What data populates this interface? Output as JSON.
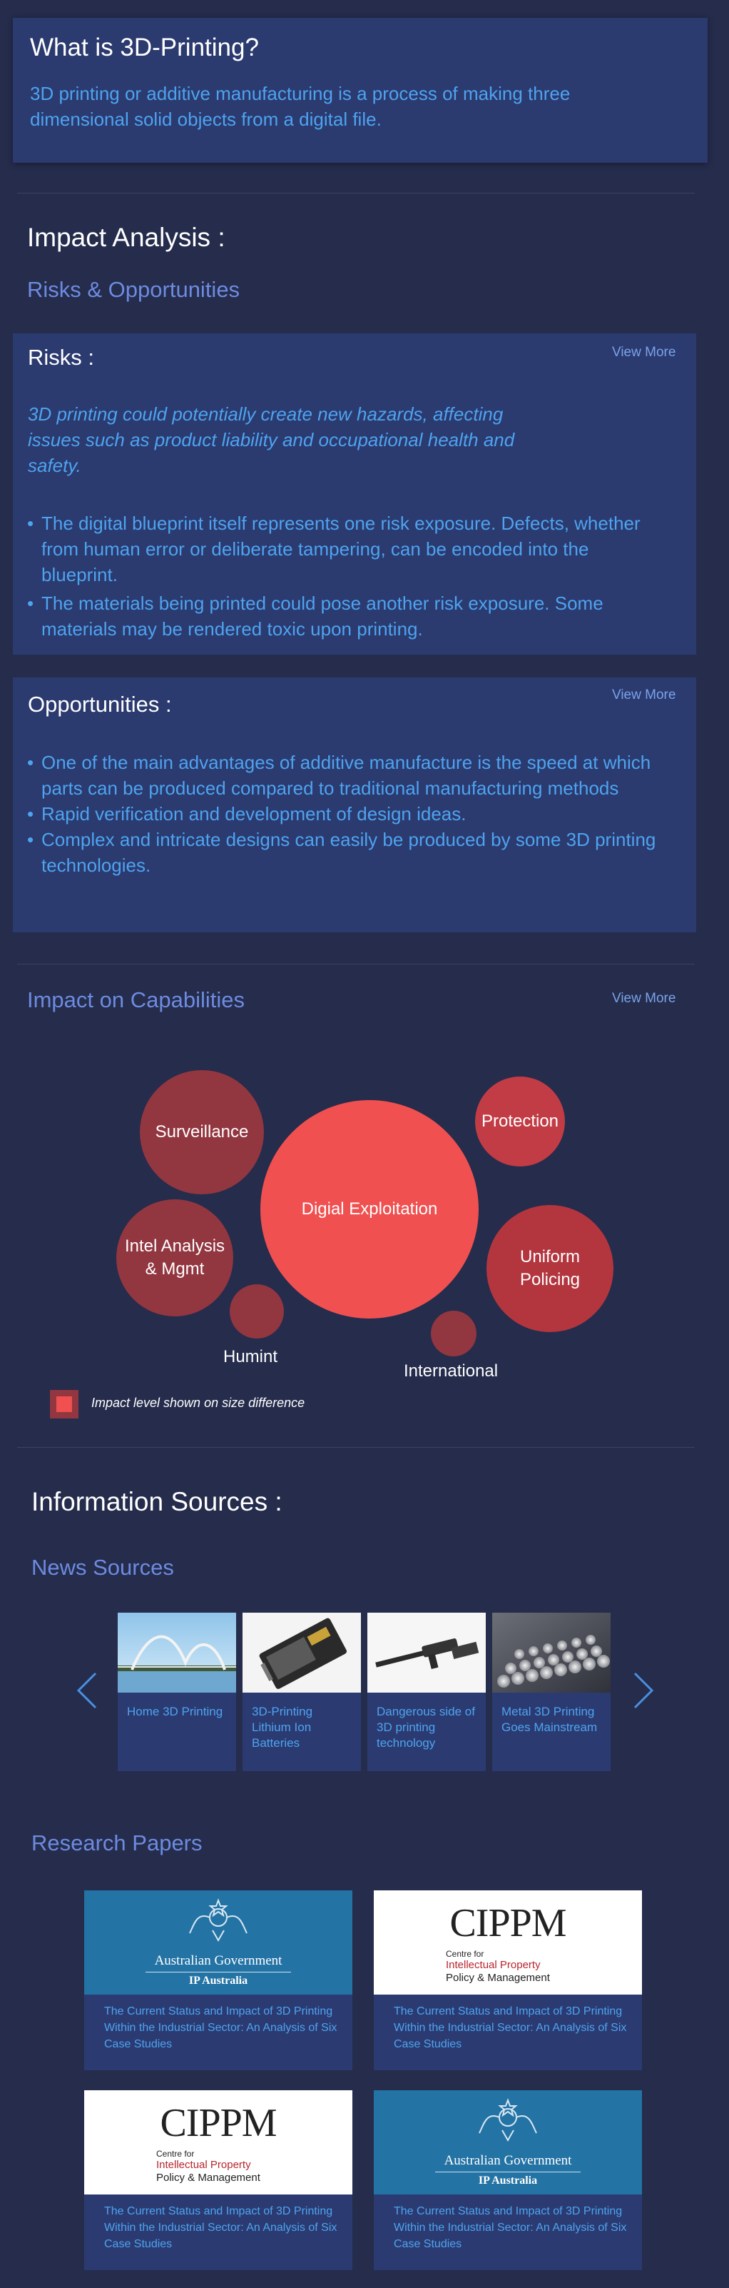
{
  "intro": {
    "heading": "What is 3D-Printing?",
    "body": "3D printing or additive manufacturing is a process of making three dimensional solid objects from a digital file."
  },
  "impact": {
    "heading": "Impact Analysis :",
    "subheading": "Risks & Opportunities"
  },
  "risks": {
    "heading": "Risks :",
    "view_more": "View More",
    "summary": "3D printing could potentially create new hazards, affecting issues such as product liability and occupational health and safety.",
    "bullets": [
      "The digital blueprint itself represents one risk exposure. Defects, whether from human error or deliberate tampering, can be encoded into the blueprint.",
      "The materials being printed could pose another risk exposure. Some materials may be rendered toxic upon printing."
    ]
  },
  "opportunities": {
    "heading": "Opportunities :",
    "view_more": "View More",
    "bullets": [
      "One of the main advantages of additive manufacture is the speed at which parts can be produced compared to traditional manufacturing methods",
      "Rapid verification and development of design ideas.",
      "Complex and intricate designs can easily be produced by some 3D printing technologies."
    ]
  },
  "capabilities": {
    "heading": "Impact on Capabilities",
    "view_more": "View More",
    "bubbles": [
      {
        "label": "Digial Exploitation",
        "size": 5
      },
      {
        "label": "Surveillance",
        "size": 3
      },
      {
        "label": "Protection",
        "size": 2
      },
      {
        "label": "Intel Analysis & Mgmt",
        "size": 3
      },
      {
        "label": "Uniform Policing",
        "size": 3
      },
      {
        "label": "Humint",
        "size": 1
      },
      {
        "label": "International",
        "size": 1
      }
    ],
    "legend": "Impact level shown on size difference",
    "colors": {
      "major": "#f05050",
      "minor": "#923640",
      "legend": "#f05050"
    }
  },
  "sources": {
    "heading": "Information Sources :",
    "news_heading": "News Sources",
    "news": [
      {
        "title": "Home 3D Printing",
        "image": "bridge-photo"
      },
      {
        "title": "3D-Printing Lithium Ion Batteries",
        "image": "battery-photo"
      },
      {
        "title": "Dangerous side of 3D printing technology",
        "image": "gun-photo"
      },
      {
        "title": "Metal 3D Printing Goes Mainstream",
        "image": "metal-rods-photo"
      }
    ],
    "papers_heading": "Research Papers",
    "papers": [
      {
        "logo": "australian-government",
        "logo_line1": "Australian Government",
        "logo_line2": "IP Australia",
        "title": "The Current Status and Impact of 3D Printing Within the Industrial Sector: An Analysis of Six Case Studies"
      },
      {
        "logo": "cippm",
        "logo_acronym": "CIPPM",
        "logo_line1": "Centre for",
        "logo_line2": "Intellectual Property",
        "logo_line3": "Policy & Management",
        "title": "The Current Status and Impact of 3D Printing Within the Industrial Sector: An Analysis of Six Case Studies"
      },
      {
        "logo": "cippm",
        "logo_acronym": "CIPPM",
        "logo_line1": "Centre for",
        "logo_line2": "Intellectual Property",
        "logo_line3": "Policy & Management",
        "title": "The Current Status and Impact of 3D Printing Within the Industrial Sector: An Analysis of Six Case Studies"
      },
      {
        "logo": "australian-government",
        "logo_line1": "Australian Government",
        "logo_line2": "IP Australia",
        "title": "The Current Status and Impact of 3D Printing Within the Industrial Sector: An Analysis of Six Case Studies"
      }
    ]
  }
}
